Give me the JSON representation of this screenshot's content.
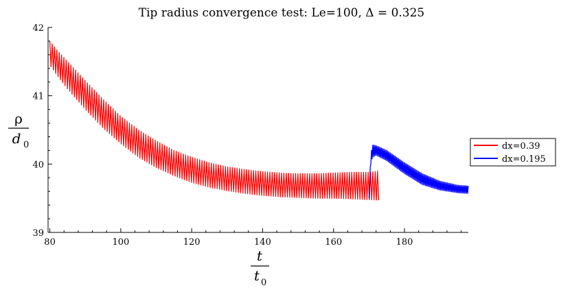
{
  "chart_data": {
    "type": "line",
    "title": "Tip radius convergence test: Le=100,  Δ = 0.325",
    "xlabel": {
      "num": "t",
      "den": "t",
      "den_sub": "0"
    },
    "ylabel": {
      "num": "ρ",
      "den": "d",
      "den_sub": "0"
    },
    "xlim": [
      79.5,
      198
    ],
    "ylim": [
      39,
      42
    ],
    "xticks": [
      80,
      100,
      120,
      140,
      160,
      180
    ],
    "yticks": [
      39,
      40,
      41,
      42
    ],
    "grid": false,
    "legend_position": "right",
    "series": [
      {
        "name": "dx=0.39",
        "color": "#ff0000",
        "oscillation_period": 0.66,
        "x": [
          80,
          82,
          85,
          90,
          95,
          100,
          105,
          110,
          115,
          120,
          125,
          130,
          135,
          140,
          145,
          150,
          155,
          160,
          165,
          170,
          173
        ],
        "upper": [
          41.8,
          41.67,
          41.5,
          41.22,
          40.95,
          40.7,
          40.5,
          40.34,
          40.2,
          40.1,
          40.02,
          39.96,
          39.92,
          39.89,
          39.87,
          39.86,
          39.86,
          39.87,
          39.88,
          39.88,
          39.9
        ],
        "lower": [
          41.45,
          41.3,
          41.1,
          40.8,
          40.53,
          40.3,
          40.1,
          39.95,
          39.83,
          39.73,
          39.66,
          39.61,
          39.57,
          39.54,
          39.52,
          39.51,
          39.5,
          39.5,
          39.49,
          39.48,
          39.47
        ]
      },
      {
        "name": "dx=0.195",
        "color": "#0000ff",
        "oscillation_period": 0.35,
        "x": [
          170,
          170.5,
          171,
          172,
          175,
          180,
          185,
          190,
          195,
          198
        ],
        "upper": [
          39.5,
          40.15,
          40.28,
          40.27,
          40.2,
          40.02,
          39.86,
          39.75,
          39.69,
          39.68
        ],
        "lower": [
          39.5,
          40.0,
          40.1,
          40.13,
          40.05,
          39.86,
          39.7,
          39.62,
          39.58,
          39.57
        ]
      }
    ]
  }
}
